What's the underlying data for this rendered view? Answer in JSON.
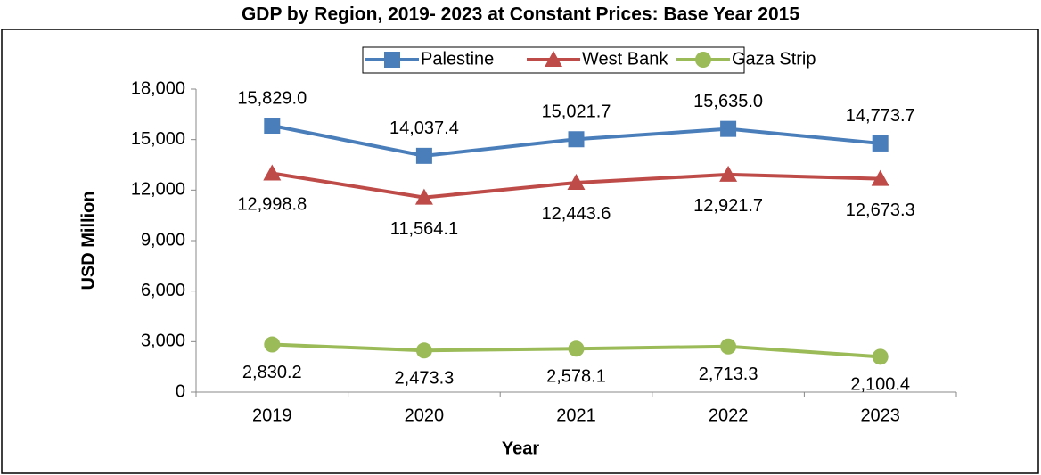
{
  "chart_data": {
    "type": "line",
    "title": "GDP by Region, 2019- 2023 at Constant Prices: Base Year 2015",
    "x_label": "Year",
    "y_label": "USD Million",
    "categories": [
      "2019",
      "2020",
      "2021",
      "2022",
      "2023"
    ],
    "series": [
      {
        "name": "Palestine",
        "color": "#4a7ebb",
        "marker": "square",
        "values": [
          15829.0,
          14037.4,
          15021.7,
          15635.0,
          14773.7
        ],
        "value_labels": [
          "15,829.0",
          "14,037.4",
          "15,021.7",
          "15,635.0",
          "14,773.7"
        ]
      },
      {
        "name": "West Bank",
        "color": "#be4b48",
        "marker": "triangle",
        "values": [
          12998.8,
          11564.1,
          12443.6,
          12921.7,
          12673.3
        ],
        "value_labels": [
          "12,998.8",
          "11,564.1",
          "12,443.6",
          "12,921.7",
          "12,673.3"
        ]
      },
      {
        "name": "Gaza Strip",
        "color": "#9bbb59",
        "marker": "circle",
        "values": [
          2830.2,
          2473.3,
          2578.1,
          2713.3,
          2100.4
        ],
        "value_labels": [
          "2,830.2",
          "2,473.3",
          "2,578.1",
          "2,713.3",
          "2,100.4"
        ]
      }
    ],
    "ylim": [
      0,
      18000
    ],
    "yticks": [
      0,
      {
        "value": 3000,
        "label": "3,000"
      },
      {
        "value": 6000,
        "label": "6,000"
      },
      {
        "value": 9000,
        "label": "9,000"
      },
      {
        "value": 12000,
        "label": "12,000"
      },
      {
        "value": 15000,
        "label": "15,000"
      },
      {
        "value": 18000,
        "label": "18,000"
      }
    ],
    "legend": "top"
  }
}
